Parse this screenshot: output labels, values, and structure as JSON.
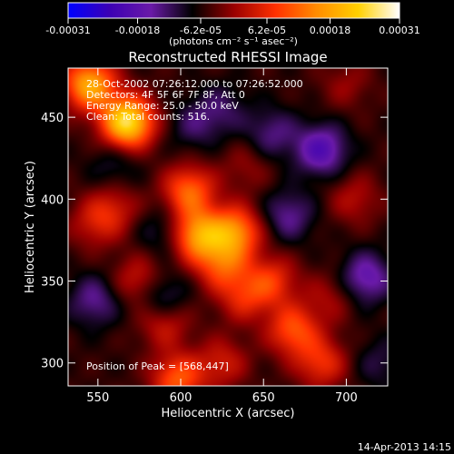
{
  "colorbar": {
    "ticks": [
      "-0.00031",
      "-0.00018",
      "-6.2e-05",
      "6.2e-05",
      "0.00018",
      "0.00031"
    ],
    "tick_values": [
      -0.00031,
      -0.00018,
      -6.2e-05,
      6.2e-05,
      0.00018,
      0.00031
    ],
    "range": [
      -0.00031,
      0.00031
    ],
    "units_label": "(photons cm⁻² s⁻¹ asec⁻²)",
    "colormap": [
      "#0000ff",
      "#3c00b4",
      "#6a1aa8",
      "#000000",
      "#9a0000",
      "#ff3000",
      "#ff8c00",
      "#ffd000",
      "#ffffff"
    ]
  },
  "chart_data": {
    "type": "heatmap",
    "title": "Reconstructed RHESSI Image",
    "xlabel": "Heliocentric X (arcsec)",
    "ylabel": "Heliocentric Y (arcsec)",
    "xlim": [
      532,
      725
    ],
    "ylim": [
      286,
      480
    ],
    "x_ticks": [
      550,
      600,
      650,
      700
    ],
    "y_ticks": [
      300,
      350,
      400,
      450
    ],
    "annotations": [
      "28-Oct-2002 07:26:12.000 to 07:26:52.000",
      "Detectors: 4F 5F 6F 7F 8F, Att 0",
      "Energy Range: 25.0 - 50.0 keV",
      "Clean: Total counts: 516."
    ],
    "peak_label": "Position of Peak = [568,447]",
    "peak": [
      568,
      447
    ],
    "sources": [
      {
        "x": 568,
        "y": 447,
        "strength": 0.00031
      },
      {
        "x": 545,
        "y": 470,
        "strength": 0.00024
      },
      {
        "x": 605,
        "y": 405,
        "strength": 0.00017
      },
      {
        "x": 610,
        "y": 378,
        "strength": 0.00022
      },
      {
        "x": 633,
        "y": 380,
        "strength": 0.0002
      },
      {
        "x": 625,
        "y": 360,
        "strength": 0.00014
      },
      {
        "x": 655,
        "y": 350,
        "strength": 0.00012
      },
      {
        "x": 575,
        "y": 350,
        "strength": 0.0001
      },
      {
        "x": 590,
        "y": 325,
        "strength": 0.0001
      },
      {
        "x": 638,
        "y": 340,
        "strength": 0.0001
      },
      {
        "x": 668,
        "y": 320,
        "strength": 0.00015
      },
      {
        "x": 685,
        "y": 300,
        "strength": 0.00012
      },
      {
        "x": 625,
        "y": 300,
        "strength": 9e-05
      },
      {
        "x": 598,
        "y": 290,
        "strength": 0.00016
      },
      {
        "x": 560,
        "y": 395,
        "strength": 8e-05
      },
      {
        "x": 548,
        "y": 385,
        "strength": 8e-05
      },
      {
        "x": 705,
        "y": 400,
        "strength": 7e-05
      },
      {
        "x": 690,
        "y": 340,
        "strength": 6e-05
      },
      {
        "x": 700,
        "y": 470,
        "strength": 5e-05
      },
      {
        "x": 640,
        "y": 420,
        "strength": 5e-05
      },
      {
        "x": 560,
        "y": 420,
        "strength": -5e-05
      },
      {
        "x": 685,
        "y": 430,
        "strength": -0.00014
      },
      {
        "x": 655,
        "y": 440,
        "strength": -8e-05
      },
      {
        "x": 665,
        "y": 390,
        "strength": -9e-05
      },
      {
        "x": 712,
        "y": 352,
        "strength": -0.00012
      },
      {
        "x": 625,
        "y": 455,
        "strength": -6e-05
      },
      {
        "x": 548,
        "y": 338,
        "strength": -9e-05
      },
      {
        "x": 588,
        "y": 340,
        "strength": -0.0001
      },
      {
        "x": 608,
        "y": 445,
        "strength": -6e-05
      },
      {
        "x": 590,
        "y": 380,
        "strength": -6e-05
      },
      {
        "x": 720,
        "y": 300,
        "strength": -5e-05
      }
    ]
  },
  "footer": {
    "timestamp": "14-Apr-2013 14:15"
  }
}
